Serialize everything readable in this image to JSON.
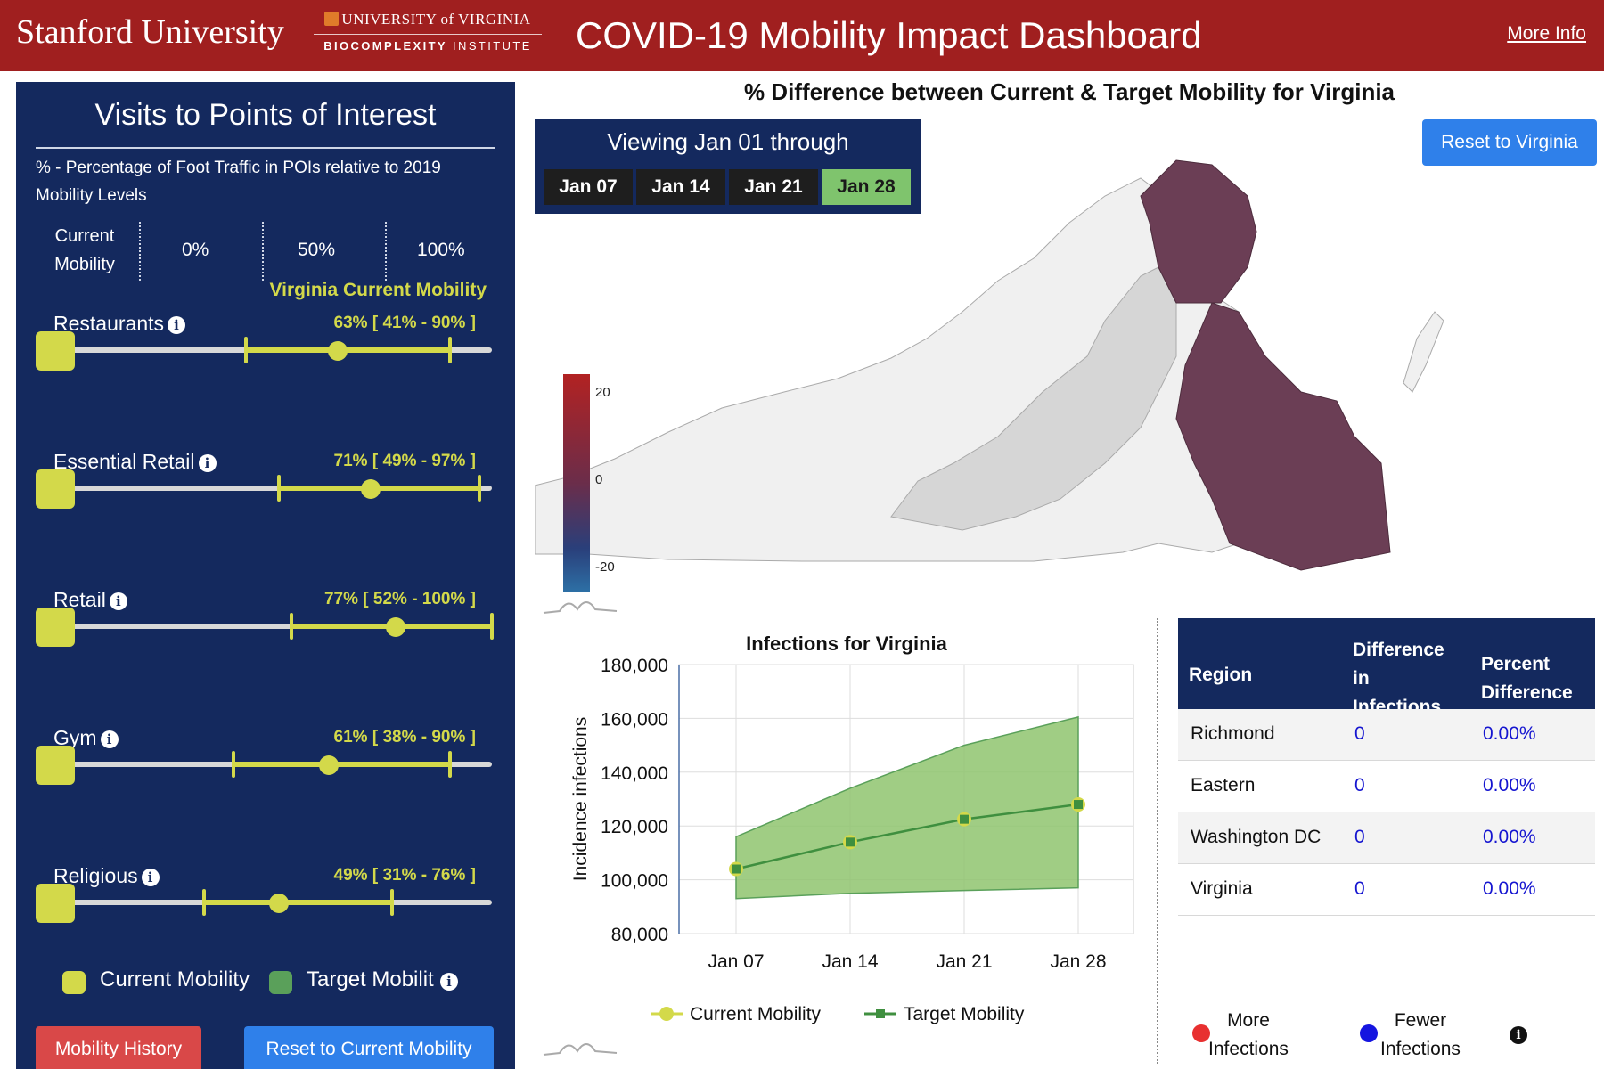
{
  "header": {
    "stanford": "Stanford University",
    "uva_top": "UNIVERSITY of VIRGINIA",
    "uva_bottom_bold": "BIOCOMPLEXITY",
    "uva_bottom_light": " INSTITUTE",
    "title": "COVID-19 Mobility Impact Dashboard",
    "more_info": "More Info"
  },
  "left_panel": {
    "title": "Visits to Points of Interest",
    "subtitle": "% - Percentage of Foot Traffic in POIs relative to 2019 Mobility Levels",
    "legend_current_line1": "Current",
    "legend_current_line2": "Mobility",
    "legend_pcts": [
      "0%",
      "50%",
      "100%"
    ],
    "virginia_current": "Virginia Current Mobility",
    "sliders": [
      {
        "label": "Restaurants",
        "range": "63% [ 41% - 90% ]",
        "current": 63,
        "low": 41,
        "high": 90
      },
      {
        "label": "Essential Retail",
        "range": "71% [ 49% - 97% ]",
        "current": 71,
        "low": 49,
        "high": 97
      },
      {
        "label": "Retail",
        "range": "77% [ 52% - 100% ]",
        "current": 77,
        "low": 52,
        "high": 100
      },
      {
        "label": "Gym",
        "range": "61% [ 38% - 90% ]",
        "current": 61,
        "low": 38,
        "high": 90
      },
      {
        "label": "Religious",
        "range": "49% [ 31% - 76% ]",
        "current": 49,
        "low": 31,
        "high": 76
      }
    ],
    "legend_current": "Current Mobility",
    "legend_target": "Target Mobilit",
    "btn_history": "Mobility History",
    "btn_reset": "Reset to Current Mobility",
    "colors": {
      "accent": "#d3d94a",
      "target": "#5aa05a",
      "panel": "#14295e"
    }
  },
  "map": {
    "title": "% Difference between Current & Target Mobility for Virginia",
    "viewing": "Viewing Jan 01 through",
    "weeks": [
      "Jan 07",
      "Jan 14",
      "Jan 21",
      "Jan 28"
    ],
    "active_week": "Jan 28",
    "reset_btn": "Reset to Virginia",
    "colorbar_labels": [
      "20",
      "0",
      "-20"
    ],
    "colors": {
      "highlight_region": "#6b3e55",
      "neutral_region": "#d8d8d8",
      "other_region": "#f0f0f0"
    }
  },
  "chart_data": {
    "type": "area",
    "title": "Infections for Virginia",
    "ylabel": "Incidence infections",
    "xlabel": "",
    "categories": [
      "Jan 07",
      "Jan 14",
      "Jan 21",
      "Jan 28"
    ],
    "ylim": [
      80000,
      180000
    ],
    "yticks": [
      "180,000",
      "160,000",
      "140,000",
      "120,000",
      "100,000",
      "80,000"
    ],
    "series": [
      {
        "name": "Current Mobility",
        "values": [
          104000,
          114000,
          122500,
          128000
        ]
      },
      {
        "name": "Target Mobility",
        "values": [
          104000,
          114000,
          122500,
          128000
        ]
      }
    ],
    "band_upper": [
      116000,
      134000,
      150000,
      160500
    ],
    "band_lower": [
      93000,
      95000,
      96000,
      97000
    ],
    "legend": [
      "Current Mobility",
      "Target Mobility"
    ],
    "grid": true
  },
  "table": {
    "headers": {
      "region": "Region",
      "diff": "Difference in Infections",
      "pct": "Percent Difference"
    },
    "rows": [
      {
        "region": "Richmond",
        "diff": "0",
        "pct": "0.00%"
      },
      {
        "region": "Eastern",
        "diff": "0",
        "pct": "0.00%"
      },
      {
        "region": "Washington DC",
        "diff": "0",
        "pct": "0.00%"
      },
      {
        "region": "Virginia",
        "diff": "0",
        "pct": "0.00%"
      }
    ],
    "legend_more": "More Infections",
    "legend_fewer": "Fewer Infections"
  }
}
